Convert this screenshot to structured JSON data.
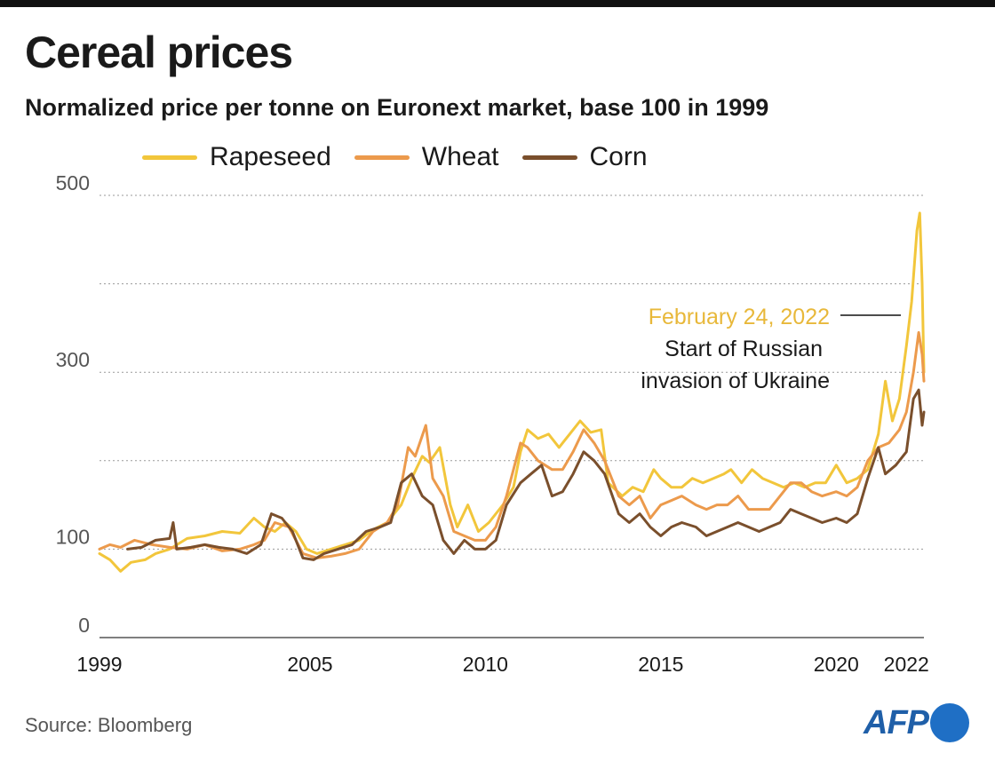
{
  "header": {
    "title": "Cereal prices",
    "subtitle": "Normalized price per tonne on Euronext market, base 100 in 1999"
  },
  "footer": {
    "source": "Source: Bloomberg",
    "logo_text": "AFP"
  },
  "colors": {
    "rapeseed": "#f2c63b",
    "wheat": "#ec9a4c",
    "corn": "#7a4f2c",
    "grid": "#9a9a9a",
    "annotation_date": "#e8b83a",
    "logo": "#1f5fa8"
  },
  "chart_data": {
    "type": "line",
    "title": "Cereal prices",
    "subtitle": "Normalized price per tonne on Euronext market, base 100 in 1999",
    "xlabel": "",
    "ylabel": "",
    "xlim": [
      1999,
      2022.5
    ],
    "ylim": [
      0,
      500
    ],
    "y_ticks": [
      0,
      100,
      300,
      500
    ],
    "y_gridlines": [
      100,
      200,
      300,
      400,
      500
    ],
    "x_ticks": [
      1999,
      2005,
      2010,
      2015,
      2020,
      2022
    ],
    "grid": true,
    "legend_position": "top",
    "annotation": {
      "date_label": "February 24, 2022",
      "text_line1": "Start of Russian",
      "text_line2": "invasion of Ukraine",
      "x": 2022.15,
      "y": 365
    },
    "series": [
      {
        "name": "Rapeseed",
        "color": "#f2c63b",
        "points": [
          [
            1999.0,
            95
          ],
          [
            1999.3,
            88
          ],
          [
            1999.6,
            75
          ],
          [
            1999.9,
            85
          ],
          [
            2000.3,
            88
          ],
          [
            2000.6,
            95
          ],
          [
            2001.0,
            100
          ],
          [
            2001.5,
            112
          ],
          [
            2002.0,
            115
          ],
          [
            2002.5,
            120
          ],
          [
            2003.0,
            118
          ],
          [
            2003.4,
            135
          ],
          [
            2003.7,
            125
          ],
          [
            2004.0,
            120
          ],
          [
            2004.3,
            130
          ],
          [
            2004.6,
            120
          ],
          [
            2004.9,
            100
          ],
          [
            2005.2,
            95
          ],
          [
            2005.6,
            100
          ],
          [
            2006.0,
            105
          ],
          [
            2006.4,
            110
          ],
          [
            2006.8,
            122
          ],
          [
            2007.2,
            130
          ],
          [
            2007.6,
            150
          ],
          [
            2007.9,
            180
          ],
          [
            2008.2,
            205
          ],
          [
            2008.4,
            198
          ],
          [
            2008.7,
            215
          ],
          [
            2009.0,
            150
          ],
          [
            2009.2,
            125
          ],
          [
            2009.5,
            150
          ],
          [
            2009.8,
            120
          ],
          [
            2010.1,
            130
          ],
          [
            2010.5,
            150
          ],
          [
            2010.8,
            170
          ],
          [
            2011.0,
            210
          ],
          [
            2011.2,
            235
          ],
          [
            2011.5,
            225
          ],
          [
            2011.8,
            230
          ],
          [
            2012.1,
            215
          ],
          [
            2012.4,
            230
          ],
          [
            2012.7,
            245
          ],
          [
            2013.0,
            232
          ],
          [
            2013.3,
            235
          ],
          [
            2013.5,
            175
          ],
          [
            2013.9,
            160
          ],
          [
            2014.2,
            170
          ],
          [
            2014.5,
            165
          ],
          [
            2014.8,
            190
          ],
          [
            2015.0,
            180
          ],
          [
            2015.3,
            170
          ],
          [
            2015.6,
            170
          ],
          [
            2015.9,
            180
          ],
          [
            2016.2,
            175
          ],
          [
            2016.5,
            180
          ],
          [
            2016.8,
            185
          ],
          [
            2017.0,
            190
          ],
          [
            2017.3,
            175
          ],
          [
            2017.6,
            190
          ],
          [
            2017.9,
            180
          ],
          [
            2018.2,
            175
          ],
          [
            2018.5,
            170
          ],
          [
            2018.8,
            175
          ],
          [
            2019.1,
            170
          ],
          [
            2019.4,
            175
          ],
          [
            2019.7,
            175
          ],
          [
            2020.0,
            195
          ],
          [
            2020.3,
            175
          ],
          [
            2020.6,
            180
          ],
          [
            2020.9,
            190
          ],
          [
            2021.2,
            230
          ],
          [
            2021.4,
            290
          ],
          [
            2021.6,
            245
          ],
          [
            2021.8,
            270
          ],
          [
            2022.0,
            330
          ],
          [
            2022.15,
            380
          ],
          [
            2022.3,
            460
          ],
          [
            2022.38,
            480
          ],
          [
            2022.45,
            400
          ],
          [
            2022.5,
            300
          ]
        ]
      },
      {
        "name": "Wheat",
        "color": "#ec9a4c",
        "points": [
          [
            1999.0,
            100
          ],
          [
            1999.3,
            105
          ],
          [
            1999.6,
            102
          ],
          [
            2000.0,
            110
          ],
          [
            2000.5,
            105
          ],
          [
            2001.0,
            102
          ],
          [
            2001.5,
            100
          ],
          [
            2002.0,
            105
          ],
          [
            2002.5,
            98
          ],
          [
            2003.0,
            100
          ],
          [
            2003.4,
            105
          ],
          [
            2003.7,
            110
          ],
          [
            2004.0,
            130
          ],
          [
            2004.4,
            125
          ],
          [
            2004.8,
            95
          ],
          [
            2005.2,
            90
          ],
          [
            2005.6,
            92
          ],
          [
            2006.0,
            95
          ],
          [
            2006.4,
            100
          ],
          [
            2006.8,
            120
          ],
          [
            2007.2,
            130
          ],
          [
            2007.5,
            150
          ],
          [
            2007.8,
            215
          ],
          [
            2008.0,
            205
          ],
          [
            2008.3,
            240
          ],
          [
            2008.5,
            180
          ],
          [
            2008.8,
            160
          ],
          [
            2009.1,
            120
          ],
          [
            2009.4,
            115
          ],
          [
            2009.7,
            110
          ],
          [
            2010.0,
            110
          ],
          [
            2010.3,
            125
          ],
          [
            2010.6,
            160
          ],
          [
            2011.0,
            220
          ],
          [
            2011.2,
            215
          ],
          [
            2011.5,
            200
          ],
          [
            2011.9,
            190
          ],
          [
            2012.2,
            190
          ],
          [
            2012.5,
            210
          ],
          [
            2012.8,
            235
          ],
          [
            2013.1,
            220
          ],
          [
            2013.4,
            200
          ],
          [
            2013.8,
            160
          ],
          [
            2014.1,
            150
          ],
          [
            2014.4,
            160
          ],
          [
            2014.7,
            135
          ],
          [
            2015.0,
            150
          ],
          [
            2015.3,
            155
          ],
          [
            2015.6,
            160
          ],
          [
            2016.0,
            150
          ],
          [
            2016.3,
            145
          ],
          [
            2016.6,
            150
          ],
          [
            2016.9,
            150
          ],
          [
            2017.2,
            160
          ],
          [
            2017.5,
            145
          ],
          [
            2017.8,
            145
          ],
          [
            2018.1,
            145
          ],
          [
            2018.4,
            160
          ],
          [
            2018.7,
            175
          ],
          [
            2019.0,
            175
          ],
          [
            2019.3,
            165
          ],
          [
            2019.6,
            160
          ],
          [
            2020.0,
            165
          ],
          [
            2020.3,
            160
          ],
          [
            2020.6,
            170
          ],
          [
            2020.9,
            200
          ],
          [
            2021.2,
            215
          ],
          [
            2021.5,
            220
          ],
          [
            2021.8,
            235
          ],
          [
            2022.0,
            255
          ],
          [
            2022.2,
            300
          ],
          [
            2022.35,
            345
          ],
          [
            2022.45,
            320
          ],
          [
            2022.5,
            290
          ]
        ]
      },
      {
        "name": "Corn",
        "color": "#7a4f2c",
        "points": [
          [
            1999.8,
            100
          ],
          [
            2000.2,
            102
          ],
          [
            2000.6,
            110
          ],
          [
            2001.0,
            112
          ],
          [
            2001.1,
            130
          ],
          [
            2001.2,
            100
          ],
          [
            2001.6,
            102
          ],
          [
            2002.0,
            105
          ],
          [
            2002.4,
            102
          ],
          [
            2002.8,
            100
          ],
          [
            2003.2,
            95
          ],
          [
            2003.6,
            105
          ],
          [
            2003.9,
            140
          ],
          [
            2004.2,
            135
          ],
          [
            2004.5,
            120
          ],
          [
            2004.8,
            90
          ],
          [
            2005.1,
            88
          ],
          [
            2005.4,
            95
          ],
          [
            2005.8,
            100
          ],
          [
            2006.2,
            105
          ],
          [
            2006.6,
            120
          ],
          [
            2007.0,
            125
          ],
          [
            2007.3,
            130
          ],
          [
            2007.6,
            175
          ],
          [
            2007.9,
            185
          ],
          [
            2008.2,
            160
          ],
          [
            2008.5,
            150
          ],
          [
            2008.8,
            110
          ],
          [
            2009.1,
            95
          ],
          [
            2009.4,
            110
          ],
          [
            2009.7,
            100
          ],
          [
            2010.0,
            100
          ],
          [
            2010.3,
            110
          ],
          [
            2010.6,
            150
          ],
          [
            2011.0,
            175
          ],
          [
            2011.3,
            185
          ],
          [
            2011.6,
            195
          ],
          [
            2011.9,
            160
          ],
          [
            2012.2,
            165
          ],
          [
            2012.5,
            185
          ],
          [
            2012.8,
            210
          ],
          [
            2013.1,
            200
          ],
          [
            2013.4,
            185
          ],
          [
            2013.8,
            140
          ],
          [
            2014.1,
            130
          ],
          [
            2014.4,
            140
          ],
          [
            2014.7,
            125
          ],
          [
            2015.0,
            115
          ],
          [
            2015.3,
            125
          ],
          [
            2015.6,
            130
          ],
          [
            2016.0,
            125
          ],
          [
            2016.3,
            115
          ],
          [
            2016.6,
            120
          ],
          [
            2016.9,
            125
          ],
          [
            2017.2,
            130
          ],
          [
            2017.5,
            125
          ],
          [
            2017.8,
            120
          ],
          [
            2018.1,
            125
          ],
          [
            2018.4,
            130
          ],
          [
            2018.7,
            145
          ],
          [
            2019.0,
            140
          ],
          [
            2019.3,
            135
          ],
          [
            2019.6,
            130
          ],
          [
            2020.0,
            135
          ],
          [
            2020.3,
            130
          ],
          [
            2020.6,
            140
          ],
          [
            2020.9,
            180
          ],
          [
            2021.2,
            215
          ],
          [
            2021.4,
            185
          ],
          [
            2021.7,
            195
          ],
          [
            2022.0,
            210
          ],
          [
            2022.2,
            270
          ],
          [
            2022.35,
            280
          ],
          [
            2022.45,
            240
          ],
          [
            2022.5,
            255
          ]
        ]
      }
    ]
  }
}
